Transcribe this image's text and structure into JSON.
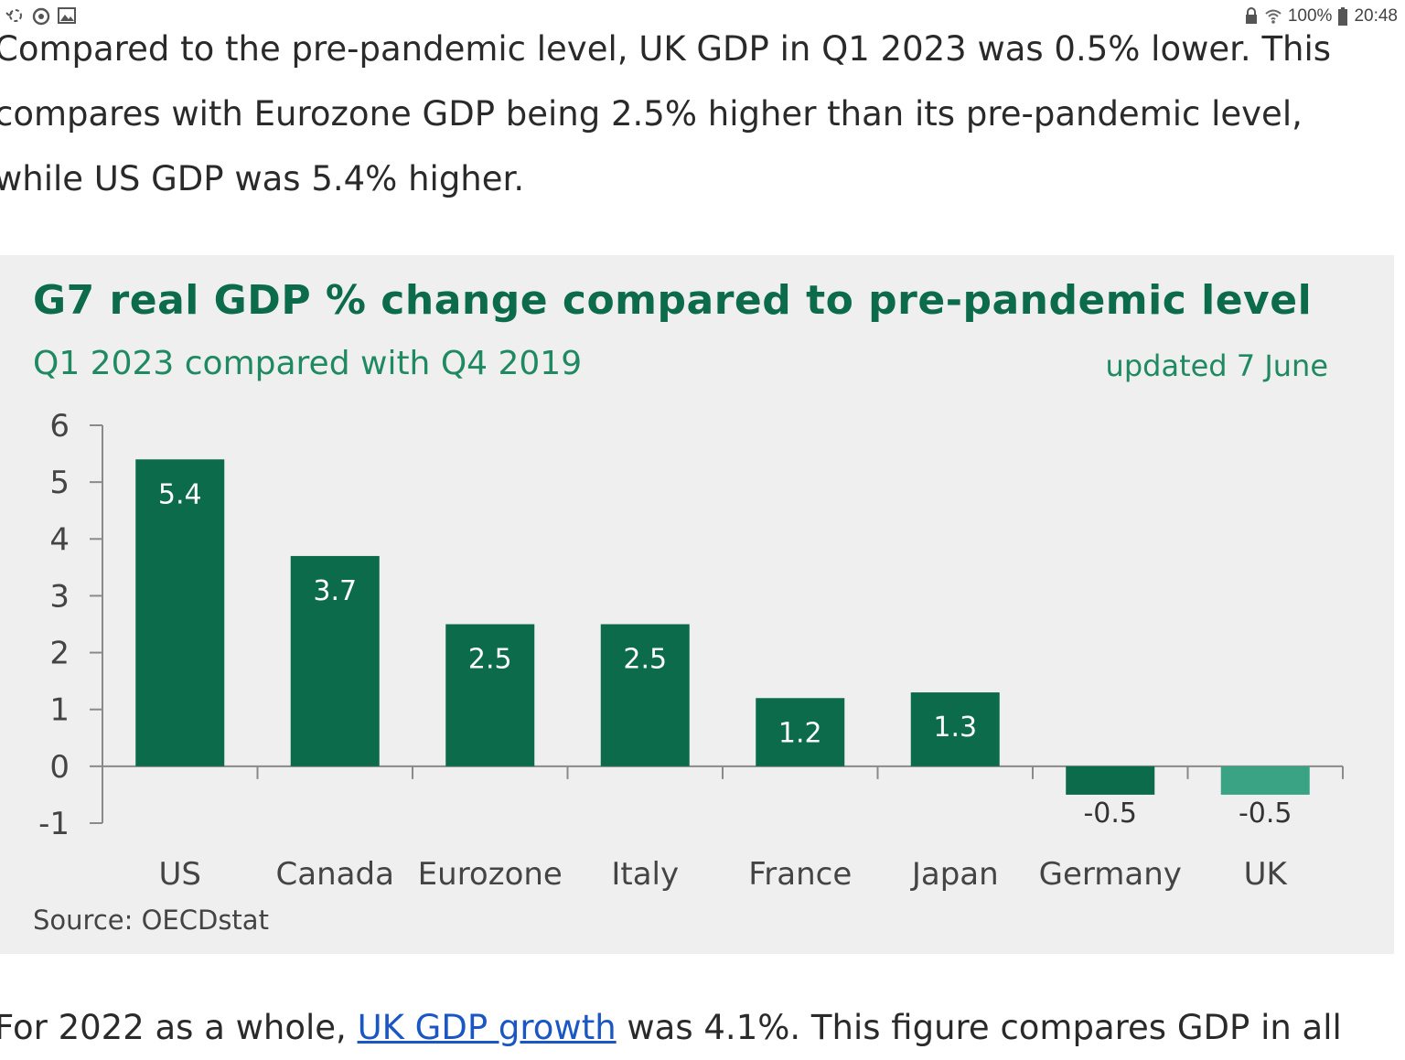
{
  "status_bar": {
    "left_icons": [
      "sync-icon",
      "alarm-icon",
      "image-icon"
    ],
    "right_icons": [
      "lock-icon",
      "wifi-icon",
      "battery-icon"
    ],
    "battery": "100%",
    "time": "20:48"
  },
  "article": {
    "intro_paragraph": {
      "line1": "Compared to the pre-pandemic level, UK GDP in Q1 2023 was 0.5% lower. This",
      "line2": "compares with Eurozone GDP being 2.5% higher than its pre-pandemic level,",
      "line3": "while US GDP was 5.4% higher."
    },
    "next_paragraph": {
      "before_link": "For 2022 as a whole,",
      "link_text": "UK GDP growth",
      "after_link": "was 4.1%. This figure compares GDP in all"
    }
  },
  "chart": {
    "title": "G7 real GDP % change compared to pre-pandemic level",
    "subtitle": "Q1 2023 compared with Q4 2019",
    "updated": "updated 7 June",
    "source": "Source: OECDstat"
  },
  "chart_data": {
    "type": "bar",
    "title": "G7 real GDP % change compared to pre-pandemic level",
    "subtitle": "Q1 2023 compared with Q4 2019",
    "xlabel": "",
    "ylabel": "",
    "categories": [
      "US",
      "Canada",
      "Eurozone",
      "Italy",
      "France",
      "Japan",
      "Germany",
      "UK"
    ],
    "values": [
      5.4,
      3.7,
      2.5,
      2.5,
      1.2,
      1.3,
      -0.5,
      -0.5
    ],
    "data_labels": [
      "5.4",
      "3.7",
      "2.5",
      "2.5",
      "1.2",
      "1.3",
      "-0.5",
      "-0.5"
    ],
    "ylim": [
      -1,
      6
    ],
    "yticks": [
      6,
      5,
      4,
      3,
      2,
      1,
      0,
      -1
    ],
    "grid": false,
    "legend": "none",
    "colors": {
      "bar": "#0b6b4a",
      "highlight_bar": "#3aa384",
      "highlight_category": "UK",
      "title": "#0b6b4a",
      "subtitle": "#1f8a62",
      "background": "#efefef"
    }
  }
}
